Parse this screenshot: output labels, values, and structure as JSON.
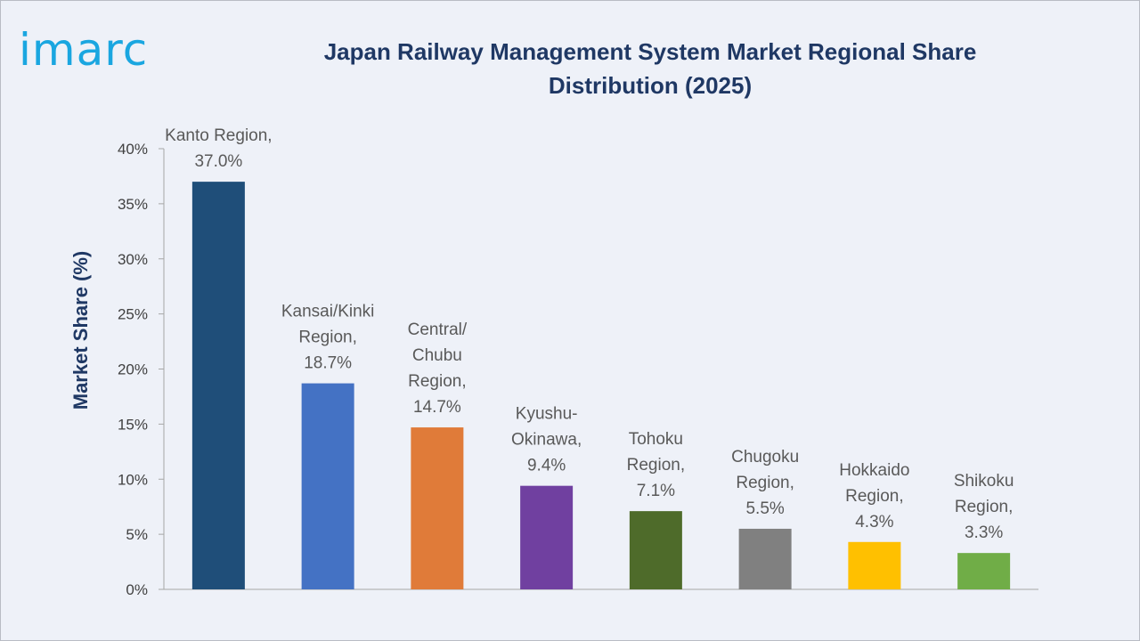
{
  "brand": {
    "logo_text": "imarc",
    "logo_color": "#1aa6e0"
  },
  "chart_data": {
    "type": "bar",
    "title": "Japan Railway Management System Market Regional Share Distribution (2025)",
    "title_lines": [
      "Japan Railway Management System Market Regional Share",
      "Distribution (2025)"
    ],
    "xlabel": "",
    "ylabel": "Market Share (%)",
    "ylim": [
      0,
      40
    ],
    "yticks": [
      0,
      5,
      10,
      15,
      20,
      25,
      30,
      35,
      40
    ],
    "ytick_labels": [
      "0%",
      "5%",
      "10%",
      "15%",
      "20%",
      "25%",
      "30%",
      "35%",
      "40%"
    ],
    "grid": false,
    "categories": [
      "Kanto Region",
      "Kansai/Kinki Region",
      "Central/Chubu Region",
      "Kyushu-Okinawa",
      "Tohoku Region",
      "Chugoku Region",
      "Hokkaido Region",
      "Shikoku Region"
    ],
    "values": [
      37.0,
      18.7,
      14.7,
      9.4,
      7.1,
      5.5,
      4.3,
      3.3
    ],
    "colors": [
      "#1f4e79",
      "#4472c4",
      "#e07b39",
      "#7040a0",
      "#4e6b2a",
      "#808080",
      "#ffc000",
      "#70ad47"
    ],
    "data_labels": [
      [
        "Kanto Region,",
        "37.0%"
      ],
      [
        "Kansai/Kinki",
        "Region,",
        "18.7%"
      ],
      [
        "Central/",
        "Chubu",
        "Region,",
        "14.7%"
      ],
      [
        "Kyushu-",
        "Okinawa,",
        "9.4%"
      ],
      [
        "Tohoku",
        "Region,",
        "7.1%"
      ],
      [
        "Chugoku",
        "Region,",
        "5.5%"
      ],
      [
        "Hokkaido",
        "Region,",
        "4.3%"
      ],
      [
        "Shikoku",
        "Region,",
        "3.3%"
      ]
    ]
  }
}
